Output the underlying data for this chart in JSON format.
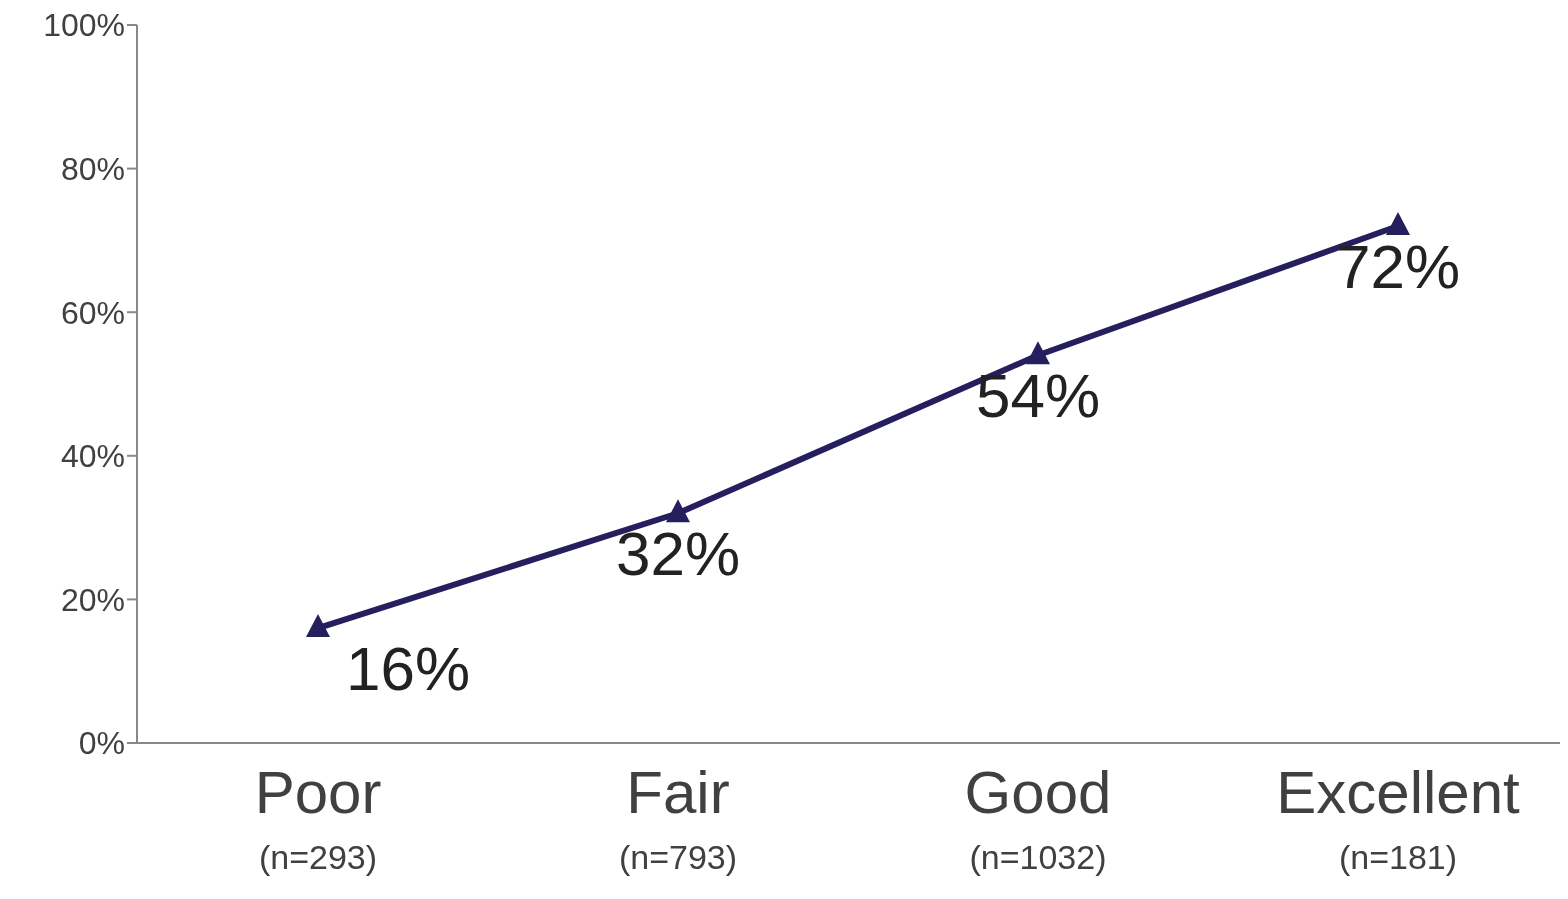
{
  "chart_data": {
    "type": "line",
    "categories": [
      "Poor\n(n=293)",
      "Fair\n(n=793)",
      "Good\n(n=1032)",
      "Excellent\n(n=181)"
    ],
    "series": [
      {
        "color": "#251f5e",
        "values": [
          16,
          32,
          54,
          72
        ],
        "value_labels": [
          "16%",
          "32%",
          "54%",
          "72%"
        ]
      }
    ],
    "ylim": [
      0,
      100
    ],
    "yticks": [
      {
        "value": 0,
        "label": "0%"
      },
      {
        "value": 20,
        "label": "20%"
      },
      {
        "value": 40,
        "label": "40%"
      },
      {
        "value": 60,
        "label": "60%"
      },
      {
        "value": 80,
        "label": "80%"
      },
      {
        "value": 100,
        "label": "100%"
      }
    ],
    "grid": false,
    "legend": false,
    "marker": "triangle",
    "line_style": "solid"
  }
}
